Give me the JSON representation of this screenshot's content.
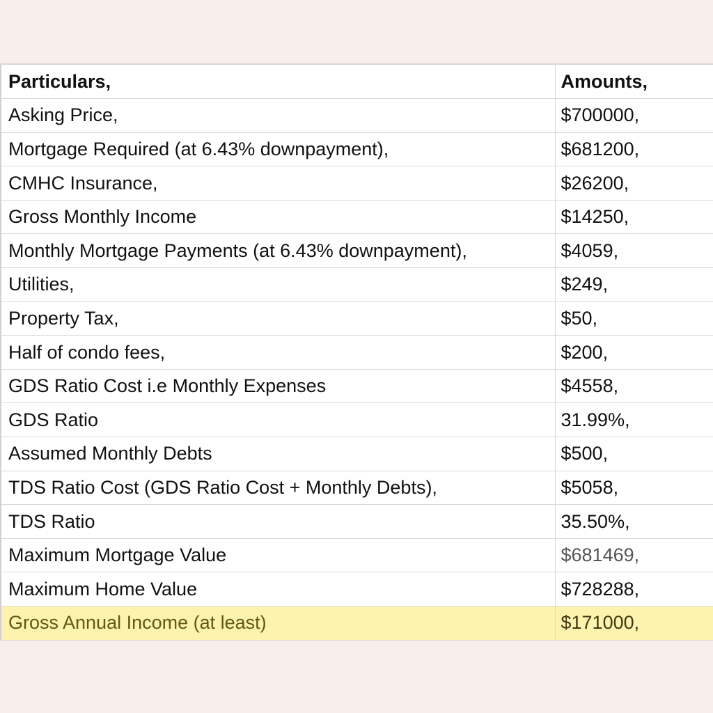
{
  "table": {
    "header": {
      "particular": "Particulars,",
      "amount": "Amounts,"
    },
    "rows": [
      {
        "particular": "Asking Price,",
        "amount": "$700000,"
      },
      {
        "particular": "Mortgage Required (at 6.43% downpayment),",
        "amount": "$681200,"
      },
      {
        "particular": "CMHC Insurance,",
        "amount": "$26200,"
      },
      {
        "particular": "Gross Monthly Income",
        "amount": "$14250,"
      },
      {
        "particular": "Monthly Mortgage Payments (at 6.43% downpayment),",
        "amount": "$4059,"
      },
      {
        "particular": "Utilities,",
        "amount": "$249,"
      },
      {
        "particular": "Property Tax,",
        "amount": "$50,"
      },
      {
        "particular": "Half of condo fees,",
        "amount": "$200,"
      },
      {
        "particular": "GDS Ratio Cost i.e Monthly Expenses",
        "amount": "$4558,"
      },
      {
        "particular": "GDS Ratio",
        "amount": "31.99%,"
      },
      {
        "particular": "Assumed Monthly Debts",
        "amount": "$500,"
      },
      {
        "particular": "TDS Ratio Cost (GDS Ratio Cost + Monthly Debts),",
        "amount": "$5058,"
      },
      {
        "particular": "TDS Ratio",
        "amount": "35.50%,"
      },
      {
        "particular": "Maximum Mortgage Value",
        "amount": "$681469,"
      },
      {
        "particular": "Maximum Home Value",
        "amount": "$728288,"
      },
      {
        "particular": "Gross Annual Income (at least)",
        "amount": "$171000,"
      }
    ],
    "highlight_color": "#fdf3ae"
  }
}
